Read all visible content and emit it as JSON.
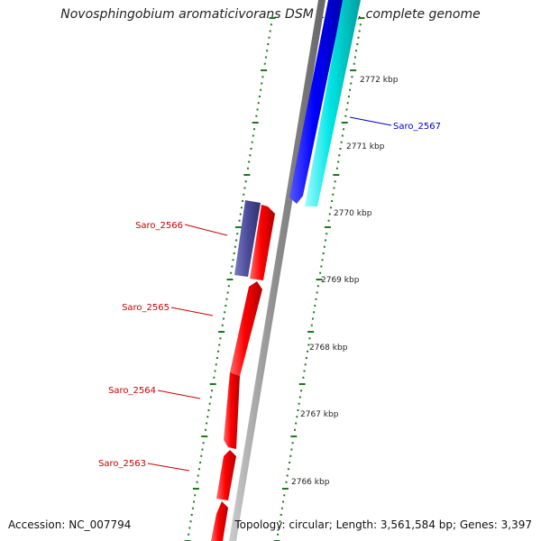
{
  "title": "Novosphingobium aromaticivorans DSM 12444, complete genome",
  "footer": {
    "accession": "Accession: NC_007794",
    "summary": "Topology: circular; Length: 3,561,584 bp; Genes: 3,397"
  },
  "ticks": [
    {
      "label": "2772 kbp"
    },
    {
      "label": "2771 kbp"
    },
    {
      "label": "2770 kbp"
    },
    {
      "label": "2769 kbp"
    },
    {
      "label": "2768 kbp"
    },
    {
      "label": "2767 kbp"
    },
    {
      "label": "2766 kbp"
    }
  ],
  "genes": [
    {
      "label": "Saro_2567",
      "strand": "forward",
      "color": "#0000ff"
    },
    {
      "label": "Saro_2566",
      "strand": "reverse",
      "color": "#cc0000"
    },
    {
      "label": "Saro_2565",
      "strand": "reverse",
      "color": "#cc0000"
    },
    {
      "label": "Saro_2564",
      "strand": "reverse",
      "color": "#cc0000"
    },
    {
      "label": "Saro_2563",
      "strand": "reverse",
      "color": "#cc0000"
    }
  ],
  "colors": {
    "forward_gene": "#0000ff",
    "forward_cds": "#00e5e5",
    "reverse_gene": "#ff0000",
    "reverse_other": "#4b4b9a",
    "backbone": "#999999",
    "ticks": "#1a7a1a"
  }
}
